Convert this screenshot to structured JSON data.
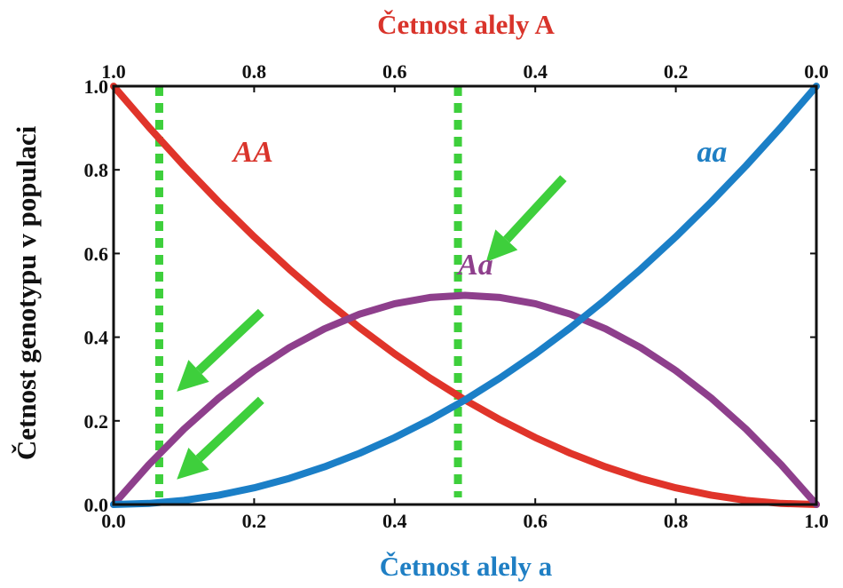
{
  "chart_data": {
    "type": "line",
    "top_axis": {
      "label": "Četnost alely A",
      "ticks": [
        "1.0",
        "0.8",
        "0.6",
        "0.4",
        "0.2",
        "0.0"
      ],
      "color": "#d9342b"
    },
    "bottom_axis": {
      "label": "Četnost alely a",
      "ticks": [
        "0.0",
        "0.2",
        "0.4",
        "0.6",
        "0.8",
        "1.0"
      ],
      "color": "#1f7fc4"
    },
    "left_axis": {
      "label": "Četnost genotypu v populaci",
      "ticks": [
        "0.0",
        "0.2",
        "0.4",
        "0.6",
        "0.8",
        "1.0"
      ]
    },
    "xlim": [
      0,
      1
    ],
    "ylim": [
      0,
      1
    ],
    "series": [
      {
        "name": "AA",
        "color": "#e0342a",
        "x": [
          0,
          0.05,
          0.1,
          0.15,
          0.2,
          0.25,
          0.3,
          0.35,
          0.4,
          0.45,
          0.5,
          0.55,
          0.6,
          0.65,
          0.7,
          0.75,
          0.8,
          0.85,
          0.9,
          0.95,
          1
        ],
        "y": [
          1,
          0.9025,
          0.81,
          0.7225,
          0.64,
          0.5625,
          0.49,
          0.4225,
          0.36,
          0.3025,
          0.25,
          0.2025,
          0.16,
          0.1225,
          0.09,
          0.0625,
          0.04,
          0.0225,
          0.01,
          0.0025,
          0
        ]
      },
      {
        "name": "Aa",
        "color": "#8e3f8c",
        "x": [
          0,
          0.05,
          0.1,
          0.15,
          0.2,
          0.25,
          0.3,
          0.35,
          0.4,
          0.45,
          0.5,
          0.55,
          0.6,
          0.65,
          0.7,
          0.75,
          0.8,
          0.85,
          0.9,
          0.95,
          1
        ],
        "y": [
          0,
          0.095,
          0.18,
          0.255,
          0.32,
          0.375,
          0.42,
          0.455,
          0.48,
          0.495,
          0.5,
          0.495,
          0.48,
          0.455,
          0.42,
          0.375,
          0.32,
          0.255,
          0.18,
          0.095,
          0
        ]
      },
      {
        "name": "aa",
        "color": "#1b7fc7",
        "x": [
          0,
          0.05,
          0.1,
          0.15,
          0.2,
          0.25,
          0.3,
          0.35,
          0.4,
          0.45,
          0.5,
          0.55,
          0.6,
          0.65,
          0.7,
          0.75,
          0.8,
          0.85,
          0.9,
          0.95,
          1
        ],
        "y": [
          0,
          0.0025,
          0.01,
          0.0225,
          0.04,
          0.0625,
          0.09,
          0.1225,
          0.16,
          0.2025,
          0.25,
          0.3025,
          0.36,
          0.4225,
          0.49,
          0.5625,
          0.64,
          0.7225,
          0.81,
          0.9025,
          1
        ]
      }
    ],
    "reference_lines": [
      {
        "x": 0.065,
        "color": "#3ecf3c",
        "style": "dotted"
      },
      {
        "x": 0.49,
        "color": "#3ecf3c",
        "style": "dotted"
      }
    ],
    "arrows": [
      {
        "from": [
          0.64,
          0.78
        ],
        "to": [
          0.53,
          0.58
        ],
        "color": "#3ecf3c"
      },
      {
        "from": [
          0.21,
          0.46
        ],
        "to": [
          0.09,
          0.27
        ],
        "color": "#3ecf3c"
      },
      {
        "from": [
          0.21,
          0.25
        ],
        "to": [
          0.09,
          0.06
        ],
        "color": "#3ecf3c"
      }
    ],
    "series_labels": [
      {
        "text": "AA",
        "x": 0.17,
        "y": 0.82,
        "color": "#d9342b"
      },
      {
        "text": "Aa",
        "x": 0.49,
        "y": 0.55,
        "color": "#8e3f8c"
      },
      {
        "text": "aa",
        "x": 0.83,
        "y": 0.82,
        "color": "#1f7fc4"
      }
    ],
    "grid": false
  }
}
